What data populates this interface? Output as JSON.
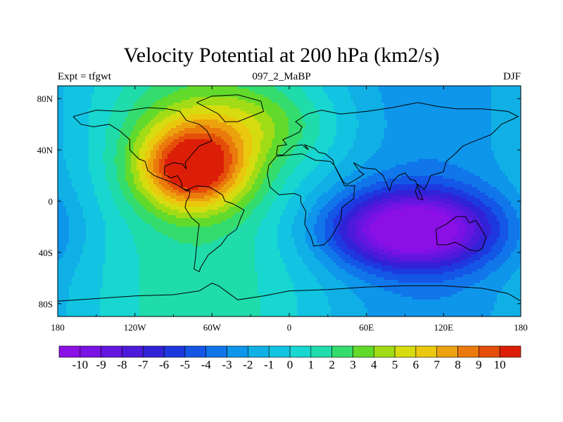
{
  "chart_data": {
    "type": "heatmap",
    "title": "Velocity Potential at 200 hPa (km2/s)",
    "subtitle_left": "Expt = tfgwt",
    "subtitle_center": "097_2_MaBP",
    "subtitle_right": "DJF",
    "x_ticks": [
      "180",
      "120W",
      "60W",
      "0",
      "60E",
      "120E",
      "180"
    ],
    "x_tick_values": [
      -180,
      -120,
      -60,
      0,
      60,
      120,
      180
    ],
    "y_ticks": [
      "80N",
      "40N",
      "0",
      "40S",
      "80S"
    ],
    "y_tick_values": [
      80,
      40,
      0,
      -40,
      -80
    ],
    "xlim": [
      -180,
      180
    ],
    "ylim": [
      -90,
      90
    ],
    "colorbar_labels": [
      "-10",
      "-9",
      "-8",
      "-7",
      "-6",
      "-5",
      "-4",
      "-3",
      "-2",
      "-1",
      "0",
      "1",
      "2",
      "3",
      "4",
      "5",
      "6",
      "7",
      "8",
      "9",
      "10"
    ],
    "colorbar_colors": [
      "#8a10e6",
      "#7a12e4",
      "#6416e0",
      "#4c1ad8",
      "#3222d6",
      "#1e38e0",
      "#1456e6",
      "#1076ea",
      "#0e96ea",
      "#10b0e6",
      "#12c4e2",
      "#18d6d0",
      "#20dcaa",
      "#34dc6e",
      "#62da2c",
      "#a2dc16",
      "#d6dc10",
      "#eac80e",
      "#eca20e",
      "#ea7a0c",
      "#e44e0a",
      "#dc1e08"
    ],
    "field_features": [
      {
        "kind": "max",
        "lon": -75,
        "lat": 25,
        "peak": 10.3,
        "sx": 40,
        "sy": 30
      },
      {
        "kind": "max",
        "lon": -40,
        "lat": 60,
        "peak": 3.5,
        "sx": 70,
        "sy": 30
      },
      {
        "kind": "min",
        "lon": 95,
        "lat": -22,
        "peak": -10.3,
        "sx": 60,
        "sy": 28
      }
    ]
  }
}
